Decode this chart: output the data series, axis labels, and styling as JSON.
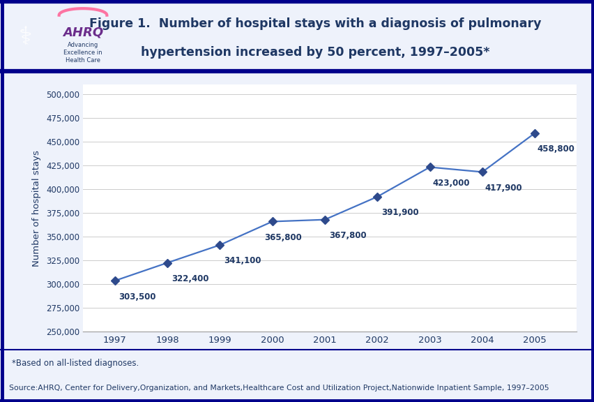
{
  "title_line1": "Figure 1.  Number of hospital stays with a diagnosis of pulmonary",
  "title_line2": "hypertension increased by 50 percent, 1997–2005*",
  "years": [
    1997,
    1998,
    1999,
    2000,
    2001,
    2002,
    2003,
    2004,
    2005
  ],
  "values": [
    303500,
    322400,
    341100,
    365800,
    367800,
    391900,
    423000,
    417900,
    458800
  ],
  "labels": [
    "303,500",
    "322,400",
    "341,100",
    "365,800",
    "367,800",
    "391,900",
    "423,000",
    "417,900",
    "458,800"
  ],
  "ylabel": "Number of hospital stays",
  "ylim_min": 250000,
  "ylim_max": 510000,
  "yticks": [
    250000,
    275000,
    300000,
    325000,
    350000,
    375000,
    400000,
    425000,
    450000,
    475000,
    500000
  ],
  "ytick_labels": [
    "250,000",
    "275,000",
    "300,000",
    "325,000",
    "350,000",
    "375,000",
    "400,000",
    "425,000",
    "450,000",
    "475,000",
    "500,000"
  ],
  "line_color": "#4472C4",
  "marker_color": "#2E4A8C",
  "title_color": "#1F3864",
  "axis_color": "#1F3864",
  "label_color": "#1F3864",
  "bg_color": "#FFFFFF",
  "fig_bg": "#EEF2FB",
  "border_color": "#00008B",
  "footnote": "*Based on all-listed diagnoses.",
  "source": "Source:AHRQ, Center for Delivery,Organization, and Markets,Healthcare Cost and Utilization Project,Nationwide Inpatient Sample, 1997–2005",
  "label_offsets_x": [
    0.08,
    0.08,
    0.08,
    -0.15,
    0.08,
    0.08,
    0.05,
    0.05,
    0.05
  ],
  "label_offsets_y": [
    -12000,
    -12000,
    -12000,
    -12000,
    -12000,
    -12000,
    -12000,
    -12000,
    -12000
  ]
}
